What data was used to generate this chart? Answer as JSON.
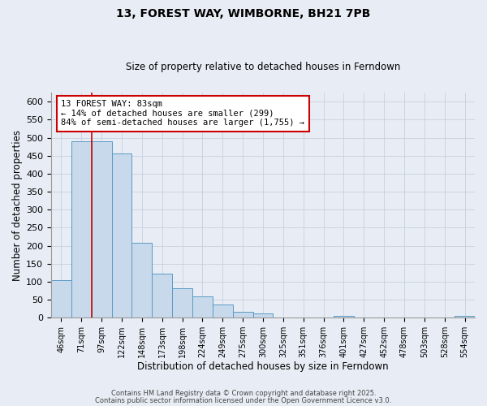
{
  "title": "13, FOREST WAY, WIMBORNE, BH21 7PB",
  "subtitle": "Size of property relative to detached houses in Ferndown",
  "xlabel": "Distribution of detached houses by size in Ferndown",
  "ylabel": "Number of detached properties",
  "bin_labels": [
    "46sqm",
    "71sqm",
    "97sqm",
    "122sqm",
    "148sqm",
    "173sqm",
    "198sqm",
    "224sqm",
    "249sqm",
    "275sqm",
    "300sqm",
    "325sqm",
    "351sqm",
    "376sqm",
    "401sqm",
    "427sqm",
    "452sqm",
    "478sqm",
    "503sqm",
    "528sqm",
    "554sqm"
  ],
  "bar_heights": [
    105,
    490,
    490,
    457,
    208,
    122,
    82,
    58,
    37,
    15,
    11,
    0,
    0,
    0,
    5,
    0,
    0,
    0,
    0,
    0,
    5
  ],
  "bar_color": "#c9d9ec",
  "bar_edge_color": "#5a9ac5",
  "vline_x": 1.5,
  "vline_color": "#cc0000",
  "annotation_text": "13 FOREST WAY: 83sqm\n← 14% of detached houses are smaller (299)\n84% of semi-detached houses are larger (1,755) →",
  "annotation_box_color": "#ffffff",
  "annotation_box_edge": "#cc0000",
  "ylim": [
    0,
    625
  ],
  "yticks": [
    0,
    50,
    100,
    150,
    200,
    250,
    300,
    350,
    400,
    450,
    500,
    550,
    600
  ],
  "grid_color": "#c8d0de",
  "background_color": "#e8edf5",
  "footer_line1": "Contains HM Land Registry data © Crown copyright and database right 2025.",
  "footer_line2": "Contains public sector information licensed under the Open Government Licence v3.0."
}
